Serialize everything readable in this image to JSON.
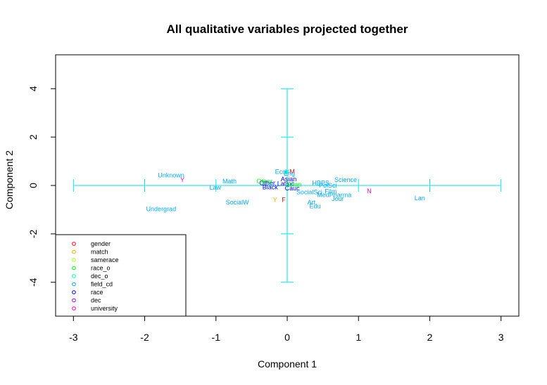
{
  "chart_data": {
    "type": "scatter",
    "title": "All qualitative variables projected together",
    "xlabel": "Component 1",
    "ylabel": "Component 2",
    "xlim": [
      -3.25,
      3.25
    ],
    "ylim": [
      -5.4,
      5.4
    ],
    "x_ticks": [
      "-3",
      "-2",
      "-1",
      "0",
      "1",
      "2",
      "3"
    ],
    "y_ticks": [
      "-4",
      "-2",
      "0",
      "2",
      "4"
    ],
    "grid": false,
    "reference_lines": {
      "color": "#00e5ee",
      "horizontal": {
        "y": 0,
        "from": -3,
        "to": 3,
        "tick_marks_at": [
          -3,
          -2,
          -1,
          0,
          1,
          2,
          3
        ]
      },
      "vertical": {
        "x": 0,
        "from": -4,
        "to": 4,
        "tick_marks_at": [
          -4,
          -2,
          0,
          2,
          4
        ]
      }
    },
    "legend": {
      "placement": "bottom-left",
      "entries": [
        {
          "label": "gender",
          "color": "#ff0000"
        },
        {
          "label": "match",
          "color": "#ffaa00"
        },
        {
          "label": "samerace",
          "color": "#aaff00"
        },
        {
          "label": "race_o",
          "color": "#00ff00"
        },
        {
          "label": "dec_o",
          "color": "#00ffaa"
        },
        {
          "label": "field_cd",
          "color": "#00aaff"
        },
        {
          "label": "race",
          "color": "#0000ff"
        },
        {
          "label": "dec",
          "color": "#aa00ff"
        },
        {
          "label": "university",
          "color": "#ff00aa"
        }
      ]
    },
    "points": [
      {
        "label": "Unknown",
        "x": -1.63,
        "y": 0.42,
        "color": "#00aaff"
      },
      {
        "label": "Y",
        "x": -1.47,
        "y": 0.23,
        "color": "#ff00aa"
      },
      {
        "label": "Math",
        "x": -0.81,
        "y": 0.18,
        "color": "#00aaff"
      },
      {
        "label": "Law",
        "x": -1.01,
        "y": -0.08,
        "color": "#00aaff"
      },
      {
        "label": "SocialW",
        "x": -0.7,
        "y": -0.7,
        "color": "#00aaff"
      },
      {
        "label": "Undergrad",
        "x": -1.77,
        "y": -0.97,
        "color": "#00aaff"
      },
      {
        "label": "Other",
        "x": -0.28,
        "y": 0.1,
        "color": "#0000ff"
      },
      {
        "label": "Other",
        "x": -0.32,
        "y": 0.18,
        "color": "#00ff00"
      },
      {
        "label": "Latino",
        "x": -0.02,
        "y": 0.07,
        "color": "#0000ff"
      },
      {
        "label": "Black",
        "x": -0.24,
        "y": -0.07,
        "color": "#0000ff"
      },
      {
        "label": "Asian",
        "x": 0.02,
        "y": 0.26,
        "color": "#0000ff"
      },
      {
        "label": "Cauc",
        "x": 0.07,
        "y": -0.12,
        "color": "#0000ff"
      },
      {
        "label": "Asian",
        "x": 0.09,
        "y": 0.04,
        "color": "#00ff00"
      },
      {
        "label": "M",
        "x": 0.07,
        "y": 0.57,
        "color": "#ff0000"
      },
      {
        "label": "F",
        "x": -0.05,
        "y": -0.6,
        "color": "#ff0000"
      },
      {
        "label": "Y",
        "x": -0.17,
        "y": -0.6,
        "color": "#ffaa00"
      },
      {
        "label": "Econ",
        "x": -0.07,
        "y": 0.57,
        "color": "#00aaff"
      },
      {
        "label": "N",
        "x": 0.0,
        "y": 0.57,
        "color": "#00ffaa"
      },
      {
        "label": "Eng",
        "x": 0.03,
        "y": 0.49,
        "color": "#00aaff"
      },
      {
        "label": "HBPS",
        "x": 0.47,
        "y": 0.1,
        "color": "#00aaff"
      },
      {
        "label": "PolSci",
        "x": 0.57,
        "y": 0.0,
        "color": "#00aaff"
      },
      {
        "label": "Science",
        "x": 0.82,
        "y": 0.23,
        "color": "#00aaff"
      },
      {
        "label": "Film",
        "x": 0.61,
        "y": -0.24,
        "color": "#00aaff"
      },
      {
        "label": "SocialSci",
        "x": 0.31,
        "y": -0.27,
        "color": "#00aaff"
      },
      {
        "label": "MedPharma",
        "x": 0.66,
        "y": -0.39,
        "color": "#00aaff"
      },
      {
        "label": "Jour",
        "x": 0.71,
        "y": -0.55,
        "color": "#00aaff"
      },
      {
        "label": "Art",
        "x": 0.34,
        "y": -0.7,
        "color": "#00aaff"
      },
      {
        "label": "Edu",
        "x": 0.39,
        "y": -0.85,
        "color": "#00aaff"
      },
      {
        "label": "N",
        "x": 1.15,
        "y": -0.23,
        "color": "#ff00aa"
      },
      {
        "label": "Lan",
        "x": 1.86,
        "y": -0.52,
        "color": "#00aaff"
      }
    ]
  }
}
